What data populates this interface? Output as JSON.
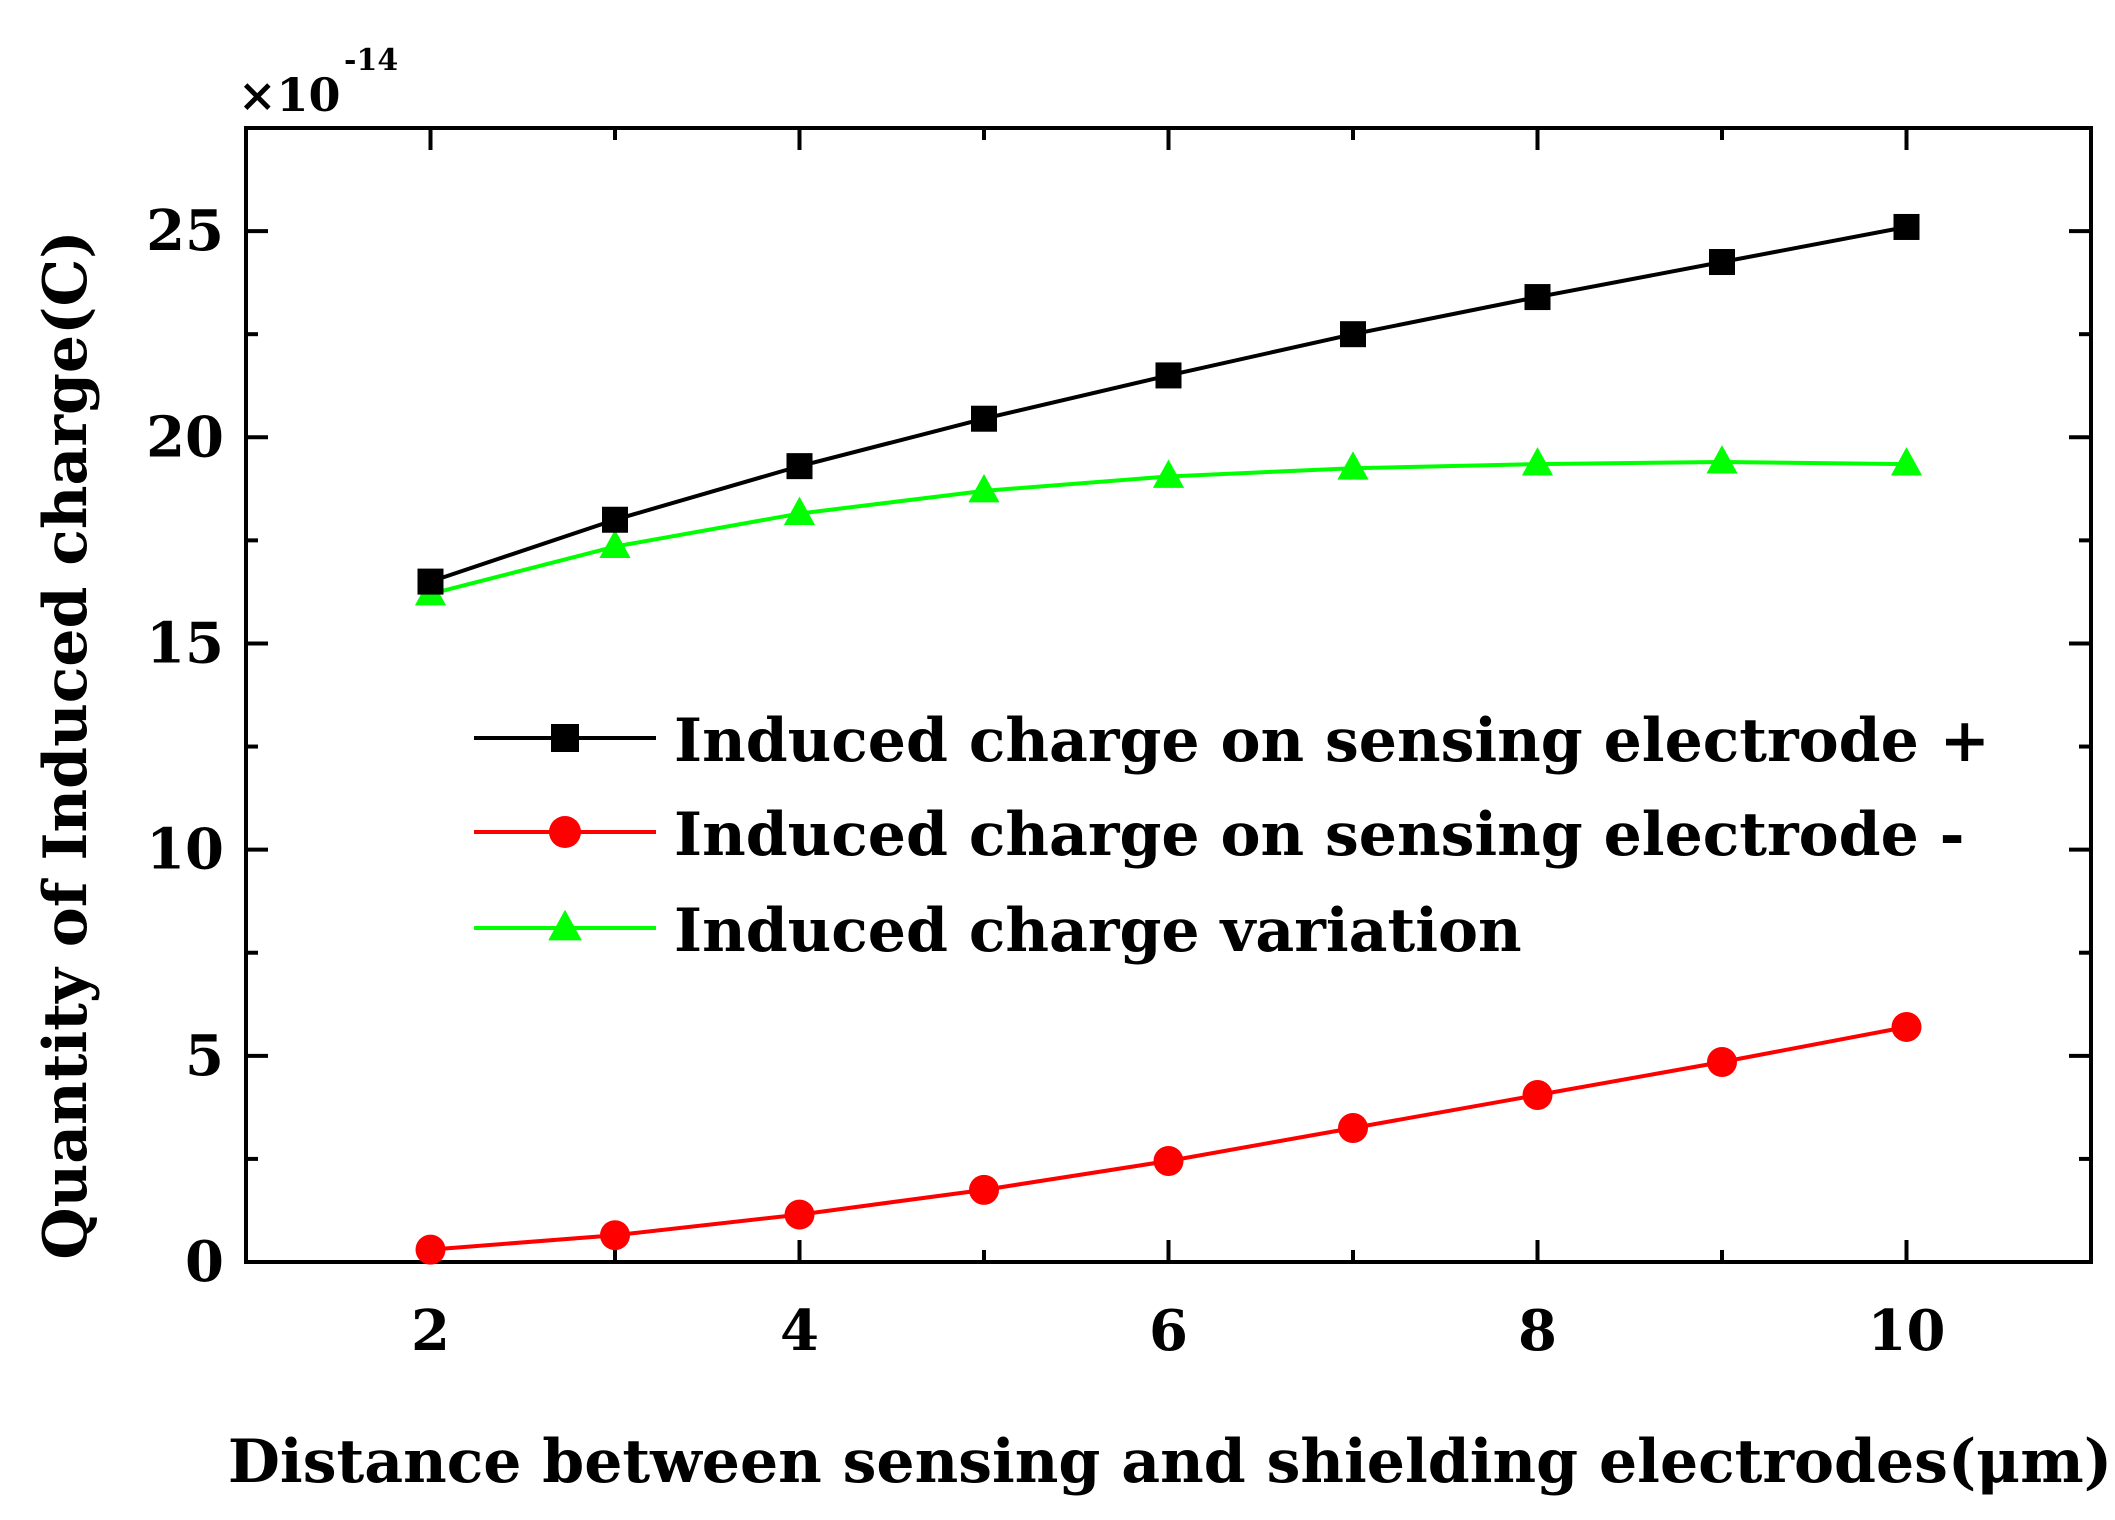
{
  "chart_data": {
    "type": "line",
    "title": "",
    "xlabel": "Distance between sensing and shielding electrodes(μm)",
    "ylabel": "Quantity of Induced charge(C)",
    "y_multiplier_label": "×10",
    "y_multiplier_exponent": "-14",
    "xlim": [
      1,
      11
    ],
    "ylim": [
      0,
      27.5
    ],
    "x_ticks": [
      2,
      4,
      6,
      8,
      10
    ],
    "y_ticks": [
      0,
      5,
      10,
      15,
      20,
      25
    ],
    "x_tick_labels": [
      "2",
      "4",
      "6",
      "8",
      "10"
    ],
    "y_tick_labels": [
      "0",
      "5",
      "10",
      "15",
      "20",
      "25"
    ],
    "grid": false,
    "legend_position": "center",
    "x": [
      2,
      3,
      4,
      5,
      6,
      7,
      8,
      9,
      10
    ],
    "series": [
      {
        "name": "Induced charge on sensing electrode +",
        "marker": "square",
        "color": "#000000",
        "values": [
          16.5,
          18.0,
          19.3,
          20.45,
          21.5,
          22.5,
          23.4,
          24.25,
          25.1
        ]
      },
      {
        "name": "Induced charge on sensing electrode -",
        "marker": "circle",
        "color": "#ff0000",
        "values": [
          0.3,
          0.65,
          1.15,
          1.75,
          2.45,
          3.25,
          4.05,
          4.85,
          5.7
        ]
      },
      {
        "name": "Induced charge variation",
        "marker": "triangle",
        "color": "#00ff00",
        "values": [
          16.2,
          17.35,
          18.15,
          18.7,
          19.05,
          19.25,
          19.35,
          19.4,
          19.35
        ]
      }
    ]
  }
}
